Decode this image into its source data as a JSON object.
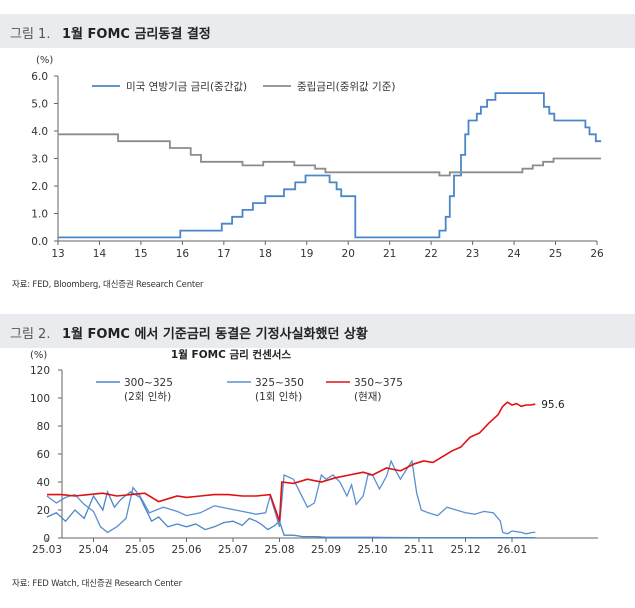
{
  "fig1": {
    "figure_label": "그림 1.",
    "title": "1월 FOMC 금리동결 결정",
    "source": "자료: FED, Bloomberg, 대신증권 Research Center"
  },
  "fig2": {
    "figure_label": "그림 2.",
    "title": "1월 FOMC 에서 기준금리 동결은 기정사실화했던 상황",
    "source": "자료: FED Watch, 대신증권 Research Center"
  },
  "colors": {
    "blue": "#4a86c8",
    "gray": "#8c8c8c",
    "red": "#e01010",
    "blue2": "#5b8fd0"
  },
  "chart_data": [
    {
      "type": "line",
      "title": "1월 FOMC 금리동결 결정",
      "ylabel": "(%)",
      "ylim": [
        0,
        6
      ],
      "yticks": [
        "0.0",
        "1.0",
        "2.0",
        "3.0",
        "4.0",
        "5.0",
        "6.0"
      ],
      "xlim": [
        13,
        26
      ],
      "xticks": [
        "13",
        "14",
        "15",
        "16",
        "17",
        "18",
        "19",
        "20",
        "21",
        "22",
        "23",
        "24",
        "25",
        "26"
      ],
      "legend_position": "top",
      "series": [
        {
          "name": "미국 연방기금 금리(중간값)",
          "color": "#4a86c8",
          "step": true,
          "points": [
            [
              13,
              0.13
            ],
            [
              15.95,
              0.13
            ],
            [
              15.95,
              0.38
            ],
            [
              16.95,
              0.38
            ],
            [
              16.95,
              0.63
            ],
            [
              17.2,
              0.63
            ],
            [
              17.2,
              0.88
            ],
            [
              17.45,
              0.88
            ],
            [
              17.45,
              1.13
            ],
            [
              17.7,
              1.13
            ],
            [
              17.7,
              1.38
            ],
            [
              18.0,
              1.38
            ],
            [
              18.0,
              1.63
            ],
            [
              18.45,
              1.63
            ],
            [
              18.45,
              1.88
            ],
            [
              18.72,
              1.88
            ],
            [
              18.72,
              2.13
            ],
            [
              18.97,
              2.13
            ],
            [
              18.97,
              2.38
            ],
            [
              19.55,
              2.38
            ],
            [
              19.55,
              2.13
            ],
            [
              19.72,
              2.13
            ],
            [
              19.72,
              1.88
            ],
            [
              19.83,
              1.88
            ],
            [
              19.83,
              1.63
            ],
            [
              20.17,
              1.63
            ],
            [
              20.17,
              0.13
            ],
            [
              22.2,
              0.13
            ],
            [
              22.2,
              0.38
            ],
            [
              22.35,
              0.38
            ],
            [
              22.35,
              0.88
            ],
            [
              22.45,
              0.88
            ],
            [
              22.45,
              1.63
            ],
            [
              22.55,
              1.63
            ],
            [
              22.55,
              2.38
            ],
            [
              22.72,
              2.38
            ],
            [
              22.72,
              3.13
            ],
            [
              22.82,
              3.13
            ],
            [
              22.82,
              3.88
            ],
            [
              22.9,
              3.88
            ],
            [
              22.9,
              4.38
            ],
            [
              23.1,
              4.38
            ],
            [
              23.1,
              4.63
            ],
            [
              23.2,
              4.63
            ],
            [
              23.2,
              4.88
            ],
            [
              23.35,
              4.88
            ],
            [
              23.35,
              5.13
            ],
            [
              23.55,
              5.13
            ],
            [
              23.55,
              5.38
            ],
            [
              24.72,
              5.38
            ],
            [
              24.72,
              4.88
            ],
            [
              24.85,
              4.88
            ],
            [
              24.85,
              4.63
            ],
            [
              24.97,
              4.63
            ],
            [
              24.97,
              4.38
            ],
            [
              25.72,
              4.38
            ],
            [
              25.72,
              4.13
            ],
            [
              25.82,
              4.13
            ],
            [
              25.82,
              3.88
            ],
            [
              25.97,
              3.88
            ],
            [
              25.97,
              3.63
            ],
            [
              26.1,
              3.63
            ]
          ]
        },
        {
          "name": "중립금리(중위값 기준)",
          "color": "#8c8c8c",
          "step": true,
          "points": [
            [
              13,
              3.88
            ],
            [
              14.45,
              3.88
            ],
            [
              14.45,
              3.63
            ],
            [
              15.7,
              3.63
            ],
            [
              15.7,
              3.38
            ],
            [
              16.2,
              3.38
            ],
            [
              16.2,
              3.13
            ],
            [
              16.45,
              3.13
            ],
            [
              16.45,
              2.88
            ],
            [
              17.45,
              2.88
            ],
            [
              17.45,
              2.75
            ],
            [
              17.95,
              2.75
            ],
            [
              17.95,
              2.88
            ],
            [
              18.7,
              2.88
            ],
            [
              18.7,
              2.75
            ],
            [
              19.2,
              2.75
            ],
            [
              19.2,
              2.63
            ],
            [
              19.45,
              2.63
            ],
            [
              19.45,
              2.5
            ],
            [
              22.2,
              2.5
            ],
            [
              22.2,
              2.38
            ],
            [
              22.45,
              2.38
            ],
            [
              22.45,
              2.5
            ],
            [
              24.2,
              2.5
            ],
            [
              24.2,
              2.63
            ],
            [
              24.45,
              2.63
            ],
            [
              24.45,
              2.75
            ],
            [
              24.7,
              2.75
            ],
            [
              24.7,
              2.88
            ],
            [
              24.95,
              2.88
            ],
            [
              24.95,
              3.0
            ],
            [
              26.1,
              3.0
            ]
          ]
        }
      ]
    },
    {
      "type": "line",
      "title": "1월 FOMC 금리 컨센서스",
      "ylabel": "(%)",
      "ylim": [
        0,
        120
      ],
      "yticks": [
        "0",
        "20",
        "40",
        "60",
        "80",
        "100",
        "120"
      ],
      "xlim": [
        0,
        10
      ],
      "xticks": [
        "25.03",
        "25.04",
        "25.05",
        "25.06",
        "25.07",
        "25.08",
        "25.09",
        "25.10",
        "25.11",
        "25.12",
        "26.01"
      ],
      "legend_position": "top",
      "annotation": "95.6",
      "series": [
        {
          "name": "300~325",
          "sublabel": "(2회 인하)",
          "color": "#4a86c8",
          "values": [
            [
              0,
              15
            ],
            [
              0.2,
              18
            ],
            [
              0.4,
              12
            ],
            [
              0.6,
              20
            ],
            [
              0.8,
              14
            ],
            [
              1.0,
              30
            ],
            [
              1.2,
              20
            ],
            [
              1.3,
              33
            ],
            [
              1.45,
              22
            ],
            [
              1.6,
              28
            ],
            [
              1.8,
              33
            ],
            [
              2.0,
              29
            ],
            [
              2.1,
              22
            ],
            [
              2.25,
              12
            ],
            [
              2.4,
              15
            ],
            [
              2.6,
              8
            ],
            [
              2.8,
              10
            ],
            [
              3.0,
              8
            ],
            [
              3.2,
              10
            ],
            [
              3.4,
              6
            ],
            [
              3.6,
              8
            ],
            [
              3.8,
              11
            ],
            [
              4.0,
              12
            ],
            [
              4.2,
              9
            ],
            [
              4.35,
              14
            ],
            [
              4.5,
              12
            ],
            [
              4.6,
              10
            ],
            [
              4.75,
              6
            ],
            [
              4.9,
              9
            ],
            [
              5.0,
              12
            ],
            [
              5.1,
              2
            ],
            [
              5.3,
              2
            ],
            [
              5.5,
              1
            ],
            [
              5.8,
              1
            ],
            [
              6.0,
              0.5
            ],
            [
              7.0,
              0.5
            ],
            [
              8.0,
              0.3
            ],
            [
              9.0,
              0.3
            ],
            [
              10.0,
              0.2
            ],
            [
              10.5,
              0.2
            ]
          ]
        },
        {
          "name": "325~350",
          "sublabel": "(1회 인하)",
          "color": "#5b8fd0",
          "values": [
            [
              0,
              30
            ],
            [
              0.2,
              25
            ],
            [
              0.4,
              29
            ],
            [
              0.6,
              31
            ],
            [
              0.8,
              24
            ],
            [
              1.0,
              19
            ],
            [
              1.15,
              8
            ],
            [
              1.3,
              4
            ],
            [
              1.5,
              8
            ],
            [
              1.7,
              14
            ],
            [
              1.85,
              36
            ],
            [
              2.0,
              30
            ],
            [
              2.2,
              18
            ],
            [
              2.5,
              22
            ],
            [
              2.8,
              19
            ],
            [
              3.0,
              16
            ],
            [
              3.3,
              18
            ],
            [
              3.6,
              23
            ],
            [
              3.9,
              21
            ],
            [
              4.2,
              19
            ],
            [
              4.5,
              17
            ],
            [
              4.7,
              18
            ],
            [
              4.8,
              30
            ],
            [
              5.0,
              8
            ],
            [
              5.1,
              45
            ],
            [
              5.3,
              42
            ],
            [
              5.45,
              32
            ],
            [
              5.6,
              22
            ],
            [
              5.75,
              25
            ],
            [
              5.9,
              45
            ],
            [
              6.0,
              42
            ],
            [
              6.15,
              45
            ],
            [
              6.3,
              40
            ],
            [
              6.45,
              30
            ],
            [
              6.55,
              38
            ],
            [
              6.65,
              24
            ],
            [
              6.8,
              30
            ],
            [
              6.9,
              45
            ],
            [
              7.0,
              45
            ],
            [
              7.15,
              35
            ],
            [
              7.3,
              44
            ],
            [
              7.4,
              55
            ],
            [
              7.5,
              48
            ],
            [
              7.6,
              42
            ],
            [
              7.75,
              50
            ],
            [
              7.85,
              55
            ],
            [
              7.95,
              32
            ],
            [
              8.05,
              20
            ],
            [
              8.2,
              18
            ],
            [
              8.4,
              16
            ],
            [
              8.6,
              22
            ],
            [
              8.8,
              20
            ],
            [
              9.0,
              18
            ],
            [
              9.2,
              17
            ],
            [
              9.4,
              19
            ],
            [
              9.6,
              18
            ],
            [
              9.75,
              12
            ],
            [
              9.8,
              4
            ],
            [
              9.9,
              3
            ],
            [
              10.0,
              5
            ],
            [
              10.2,
              4
            ],
            [
              10.3,
              3
            ],
            [
              10.45,
              4
            ],
            [
              10.5,
              4
            ]
          ]
        },
        {
          "name": "350~375",
          "sublabel": "(현재)",
          "color": "#e01010",
          "values": [
            [
              0,
              31
            ],
            [
              0.3,
              31
            ],
            [
              0.6,
              30
            ],
            [
              0.9,
              31
            ],
            [
              1.2,
              32
            ],
            [
              1.5,
              30
            ],
            [
              1.8,
              31
            ],
            [
              2.1,
              32
            ],
            [
              2.4,
              26
            ],
            [
              2.6,
              28
            ],
            [
              2.8,
              30
            ],
            [
              3.0,
              29
            ],
            [
              3.3,
              30
            ],
            [
              3.6,
              31
            ],
            [
              3.9,
              31
            ],
            [
              4.2,
              30
            ],
            [
              4.5,
              30
            ],
            [
              4.8,
              31
            ],
            [
              5.0,
              12
            ],
            [
              5.05,
              40
            ],
            [
              5.3,
              39
            ],
            [
              5.6,
              42
            ],
            [
              5.9,
              40
            ],
            [
              6.2,
              43
            ],
            [
              6.5,
              45
            ],
            [
              6.8,
              47
            ],
            [
              7.0,
              45
            ],
            [
              7.3,
              50
            ],
            [
              7.6,
              48
            ],
            [
              7.9,
              53
            ],
            [
              8.1,
              55
            ],
            [
              8.3,
              54
            ],
            [
              8.5,
              58
            ],
            [
              8.7,
              62
            ],
            [
              8.9,
              65
            ],
            [
              9.1,
              72
            ],
            [
              9.3,
              75
            ],
            [
              9.5,
              82
            ],
            [
              9.7,
              88
            ],
            [
              9.8,
              94
            ],
            [
              9.9,
              97
            ],
            [
              10.0,
              95
            ],
            [
              10.1,
              96
            ],
            [
              10.2,
              94
            ],
            [
              10.3,
              95
            ],
            [
              10.4,
              95
            ],
            [
              10.5,
              95.6
            ]
          ]
        }
      ]
    }
  ]
}
